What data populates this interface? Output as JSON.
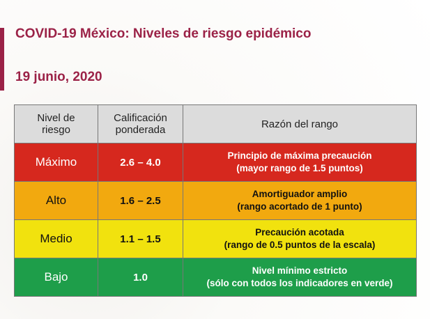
{
  "header": {
    "title": "COVID-19 México: Niveles de riesgo epidémico",
    "date": "19 junio, 2020"
  },
  "table": {
    "columns": [
      [
        "Nivel de",
        "riesgo"
      ],
      [
        "Calificación",
        "ponderada"
      ],
      [
        "Razón del rango"
      ]
    ],
    "rows": [
      {
        "nivel": "Máximo",
        "calificacion": "2.6 – 4.0",
        "razon": [
          "Principio de máxima precaución",
          "(mayor rango de 1.5 puntos)"
        ]
      },
      {
        "nivel": "Alto",
        "calificacion": "1.6 – 2.5",
        "razon": [
          "Amortiguador amplio",
          "(rango acortado de 1 punto)"
        ]
      },
      {
        "nivel": "Medio",
        "calificacion": "1.1 – 1.5",
        "razon": [
          "Precaución acotada",
          "(rango de 0.5 puntos de la escala)"
        ]
      },
      {
        "nivel": "Bajo",
        "calificacion": "1.0",
        "razon": [
          "Nivel mínimo estricto",
          "(sólo con todos los indicadores en verde)"
        ]
      }
    ]
  }
}
